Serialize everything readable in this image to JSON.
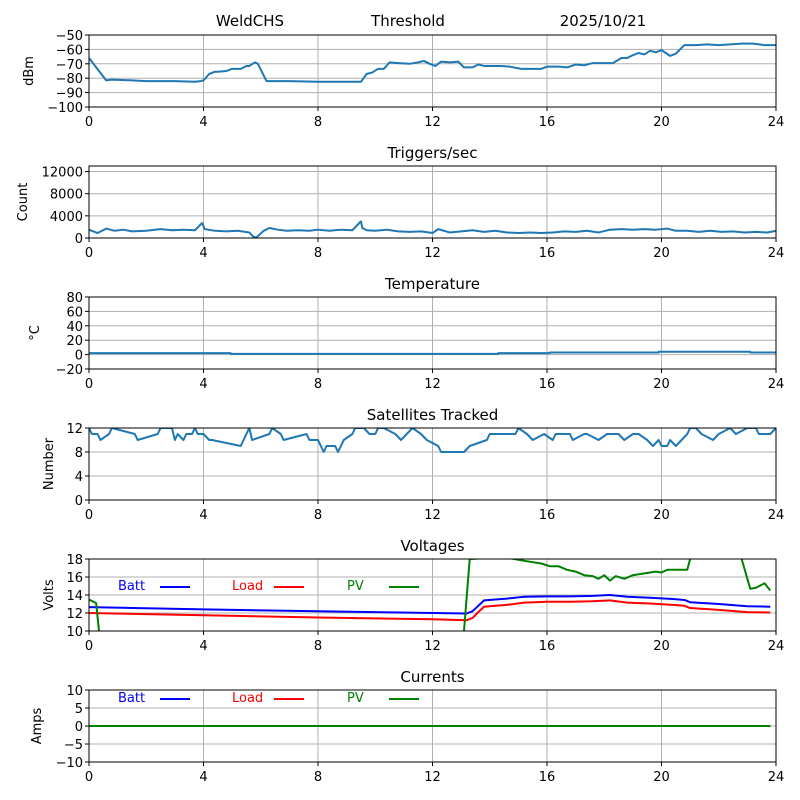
{
  "header": {
    "station": "WeldCHS",
    "mode": "Threshold",
    "date": "2025/10/21"
  },
  "chart_data": [
    {
      "id": "dbm",
      "type": "line",
      "title": "",
      "xlabel": "",
      "ylabel": "dBm",
      "xlim": [
        0,
        24
      ],
      "ylim": [
        -100,
        -50
      ],
      "xticks": [
        0,
        4,
        8,
        12,
        16,
        20,
        24
      ],
      "yticks": [
        -50,
        -60,
        -70,
        -80,
        -90,
        -100
      ],
      "ytick_labels": [
        "−50",
        "−60",
        "−70",
        "−80",
        "−90",
        "−100"
      ],
      "grid": true,
      "series": [
        {
          "name": "Threshold",
          "color": "#1f77b4",
          "x": [
            0,
            0.6,
            0.8,
            1.5,
            2,
            3,
            3.7,
            3.9,
            4.0,
            4.2,
            4.4,
            4.5,
            4.8,
            5.0,
            5.3,
            5.5,
            5.6,
            5.8,
            5.9,
            6.2,
            6.5,
            7,
            8,
            9,
            9.5,
            9.7,
            9.9,
            10.1,
            10.3,
            10.5,
            10.8,
            11.2,
            11.5,
            11.7,
            11.9,
            12.1,
            12.3,
            12.6,
            12.9,
            13.1,
            13.4,
            13.6,
            13.8,
            14.1,
            14.4,
            14.7,
            15.1,
            15.4,
            15.8,
            16.0,
            16.4,
            16.7,
            17.0,
            17.3,
            17.6,
            17.9,
            18.3,
            18.6,
            18.8,
            19.0,
            19.2,
            19.4,
            19.6,
            19.8,
            20.0,
            20.3,
            20.5,
            20.8,
            21.2,
            21.6,
            22.0,
            22.4,
            22.8,
            23.2,
            23.6,
            24
          ],
          "y": [
            -66,
            -81.5,
            -81,
            -81.5,
            -82,
            -82,
            -82.5,
            -82,
            -81.5,
            -77,
            -75.5,
            -75.5,
            -75,
            -73.5,
            -73.5,
            -71.5,
            -71.5,
            -69,
            -70,
            -82,
            -82,
            -82,
            -82.5,
            -82.5,
            -82.5,
            -77,
            -76,
            -73.5,
            -73.5,
            -69,
            -69.5,
            -70,
            -69,
            -68,
            -70,
            -71.5,
            -68.5,
            -69,
            -68.5,
            -72.5,
            -72.5,
            -70.5,
            -71.5,
            -71.5,
            -71.5,
            -72,
            -73.5,
            -73.5,
            -73.5,
            -72,
            -72,
            -72.5,
            -70.5,
            -71,
            -69.5,
            -69.5,
            -69.5,
            -66,
            -66,
            -64,
            -62.5,
            -63.5,
            -61,
            -62,
            -60.5,
            -64.5,
            -63,
            -57,
            -57,
            -56.5,
            -57,
            -56.5,
            -56,
            -56,
            -57,
            -57
          ]
        }
      ]
    },
    {
      "id": "triggers",
      "type": "line",
      "title": "Triggers/sec",
      "xlabel": "",
      "ylabel": "Count",
      "xlim": [
        0,
        24
      ],
      "ylim": [
        0,
        13000
      ],
      "xticks": [
        0,
        4,
        8,
        12,
        16,
        20,
        24
      ],
      "yticks": [
        0,
        4000,
        8000,
        12000
      ],
      "grid": true,
      "series": [
        {
          "name": "Triggers",
          "color": "#1f77b4",
          "x": [
            0,
            0.3,
            0.6,
            0.9,
            1.2,
            1.5,
            2.0,
            2.5,
            2.9,
            3.3,
            3.7,
            3.95,
            4.05,
            4.4,
            4.8,
            5.2,
            5.6,
            5.75,
            5.85,
            6.1,
            6.3,
            6.6,
            6.9,
            7.3,
            7.7,
            8.0,
            8.4,
            8.8,
            9.2,
            9.5,
            9.55,
            9.7,
            10.0,
            10.4,
            10.8,
            11.2,
            11.6,
            12.0,
            12.2,
            12.6,
            13.0,
            13.4,
            13.8,
            14.2,
            14.6,
            15.0,
            15.4,
            15.8,
            16.2,
            16.6,
            17.0,
            17.4,
            17.8,
            18.2,
            18.6,
            19.0,
            19.4,
            19.8,
            20.2,
            20.5,
            20.9,
            21.3,
            21.7,
            22.1,
            22.5,
            22.9,
            23.3,
            23.7,
            24
          ],
          "y": [
            1500,
            900,
            1700,
            1300,
            1500,
            1200,
            1300,
            1600,
            1400,
            1500,
            1400,
            2700,
            1600,
            1300,
            1200,
            1300,
            1000,
            200,
            100,
            1300,
            1800,
            1500,
            1300,
            1400,
            1300,
            1500,
            1300,
            1500,
            1400,
            3000,
            1800,
            1400,
            1300,
            1500,
            1200,
            1100,
            1200,
            900,
            1600,
            1000,
            1200,
            1400,
            1100,
            1300,
            1000,
            900,
            1000,
            900,
            1000,
            1200,
            1100,
            1300,
            1000,
            1500,
            1600,
            1500,
            1600,
            1500,
            1700,
            1300,
            1300,
            1100,
            1300,
            1100,
            1200,
            1000,
            1100,
            1000,
            1300
          ]
        }
      ]
    },
    {
      "id": "temperature",
      "type": "line",
      "title": "Temperature",
      "xlabel": "",
      "ylabel": "°C",
      "xlim": [
        0,
        24
      ],
      "ylim": [
        -20,
        80
      ],
      "xticks": [
        0,
        4,
        8,
        12,
        16,
        20,
        24
      ],
      "yticks": [
        -20,
        0,
        20,
        40,
        60,
        80
      ],
      "ytick_labels": [
        "−20",
        "0",
        "20",
        "40",
        "60",
        "80"
      ],
      "grid": true,
      "series": [
        {
          "name": "Temperature",
          "color": "#1f77b4",
          "x": [
            0,
            4.95,
            4.95,
            14.3,
            14.3,
            16.1,
            16.1,
            19.9,
            19.9,
            23.1,
            23.1,
            24
          ],
          "y": [
            2,
            2,
            1,
            1,
            2,
            2,
            3,
            3,
            4,
            4,
            3,
            3
          ]
        }
      ]
    },
    {
      "id": "satellites",
      "type": "line",
      "title": "Satellites Tracked",
      "xlabel": "",
      "ylabel": "Number",
      "xlim": [
        0,
        24
      ],
      "ylim": [
        0,
        12
      ],
      "xticks": [
        0,
        4,
        8,
        12,
        16,
        20,
        24
      ],
      "yticks": [
        0,
        4,
        8,
        12
      ],
      "grid": true,
      "series": [
        {
          "name": "Satellites",
          "color": "#1f77b4",
          "x": [
            0,
            0.1,
            0.3,
            0.4,
            0.7,
            0.8,
            1.6,
            1.7,
            2.4,
            2.5,
            2.9,
            3.0,
            3.1,
            3.3,
            3.4,
            3.6,
            3.7,
            3.8,
            4.0,
            4.2,
            4.3,
            5.3,
            5.4,
            5.5,
            5.6,
            5.7,
            6.3,
            6.4,
            6.7,
            6.8,
            7.6,
            7.7,
            8.0,
            8.2,
            8.3,
            8.6,
            8.7,
            8.9,
            9.2,
            9.3,
            9.5,
            9.6,
            9.8,
            10.0,
            10.1,
            10.3,
            10.7,
            10.9,
            11.1,
            11.3,
            11.6,
            11.8,
            12.2,
            12.3,
            12.9,
            13.1,
            13.3,
            13.9,
            14.0,
            14.4,
            14.9,
            15.0,
            15.3,
            15.5,
            15.9,
            16.2,
            16.3,
            16.8,
            16.9,
            17.3,
            17.4,
            17.8,
            18.1,
            18.5,
            18.7,
            19.0,
            19.2,
            19.5,
            19.7,
            19.9,
            20.0,
            20.2,
            20.3,
            20.5,
            20.7,
            20.9,
            21.0,
            21.2,
            21.4,
            21.8,
            22.0,
            22.4,
            22.6,
            23.0,
            23.3,
            23.4,
            23.6,
            23.8,
            24
          ],
          "y": [
            12,
            11,
            11,
            10,
            11,
            12,
            11,
            10,
            11,
            12,
            12,
            10,
            11,
            10,
            11,
            11,
            12,
            11,
            11,
            10,
            10,
            9,
            10,
            11,
            12,
            10,
            11,
            12,
            11,
            10,
            11,
            10,
            10,
            8,
            9,
            9,
            8,
            10,
            11,
            12,
            12,
            12,
            11,
            11,
            12,
            12,
            11,
            10,
            11,
            12,
            11,
            10,
            9,
            8,
            8,
            8,
            9,
            10,
            11,
            11,
            11,
            12,
            11,
            10,
            11,
            10,
            11,
            11,
            10,
            11,
            11,
            10,
            11,
            11,
            10,
            11,
            11,
            10,
            9,
            10,
            9,
            9,
            10,
            9,
            10,
            11,
            12,
            12,
            11,
            10,
            11,
            12,
            11,
            12,
            12,
            11,
            11,
            11,
            12
          ]
        }
      ]
    },
    {
      "id": "voltages",
      "type": "line",
      "title": "Voltages",
      "xlabel": "",
      "ylabel": "Volts",
      "xlim": [
        0,
        24
      ],
      "ylim": [
        10,
        18
      ],
      "xticks": [
        0,
        4,
        8,
        12,
        16,
        20,
        24
      ],
      "yticks": [
        10,
        12,
        14,
        16,
        18
      ],
      "grid": true,
      "legend": [
        {
          "label": "Batt",
          "color": "#0000ff"
        },
        {
          "label": "Load",
          "color": "#ff0000"
        },
        {
          "label": "PV",
          "color": "#008000"
        }
      ],
      "series": [
        {
          "name": "Batt",
          "color": "#0000ff",
          "x": [
            0,
            4,
            8,
            12,
            13.2,
            13.4,
            13.6,
            13.8,
            14.2,
            14.6,
            15.2,
            16,
            16.8,
            17.6,
            18.2,
            18.8,
            19.6,
            20.4,
            20.8,
            21.0,
            22,
            23,
            23.8
          ],
          "y": [
            12.65,
            12.4,
            12.2,
            12.0,
            11.95,
            12.2,
            12.8,
            13.4,
            13.5,
            13.6,
            13.8,
            13.85,
            13.85,
            13.9,
            14.0,
            13.8,
            13.7,
            13.55,
            13.45,
            13.2,
            13.0,
            12.75,
            12.7
          ]
        },
        {
          "name": "Load",
          "color": "#ff0000",
          "x": [
            0,
            4,
            8,
            12,
            13.2,
            13.4,
            13.6,
            13.8,
            14.2,
            14.6,
            15.2,
            16,
            16.8,
            17.6,
            18.2,
            18.8,
            19.6,
            20.4,
            20.8,
            21.0,
            22,
            23,
            23.8
          ],
          "y": [
            12.0,
            11.75,
            11.5,
            11.3,
            11.2,
            11.45,
            12.1,
            12.7,
            12.8,
            12.9,
            13.15,
            13.25,
            13.25,
            13.3,
            13.4,
            13.15,
            13.05,
            12.9,
            12.8,
            12.55,
            12.35,
            12.1,
            12.05
          ]
        },
        {
          "name": "PV",
          "color": "#008000",
          "x": [
            0,
            0.25,
            0.35,
            0.5,
            13.05,
            13.3,
            14.5,
            15.2,
            15.8,
            16.1,
            16.4,
            16.7,
            17.0,
            17.3,
            17.6,
            17.8,
            18.0,
            18.2,
            18.4,
            18.7,
            19.0,
            19.4,
            19.8,
            20.0,
            20.2,
            20.6,
            20.9,
            21.0,
            21.5,
            22.7,
            22.8,
            23.1,
            23.3,
            23.6,
            23.8
          ],
          "y": [
            13.5,
            13.1,
            10.0,
            8.0,
            8.0,
            18.0,
            18.2,
            17.8,
            17.5,
            17.2,
            17.2,
            16.8,
            16.6,
            16.2,
            16.1,
            15.8,
            16.2,
            15.6,
            16.1,
            15.8,
            16.2,
            16.4,
            16.6,
            16.5,
            16.8,
            16.8,
            16.8,
            18.0,
            19.0,
            19.0,
            18.0,
            14.7,
            14.8,
            15.3,
            14.5
          ]
        }
      ]
    },
    {
      "id": "currents",
      "type": "line",
      "title": "Currents",
      "xlabel": "",
      "ylabel": "Amps",
      "xlim": [
        0,
        24
      ],
      "ylim": [
        -10,
        10
      ],
      "xticks": [
        0,
        4,
        8,
        12,
        16,
        20,
        24
      ],
      "yticks": [
        -10,
        -5,
        0,
        5,
        10
      ],
      "ytick_labels": [
        "−10",
        "−5",
        "0",
        "5",
        "10"
      ],
      "grid": true,
      "legend": [
        {
          "label": "Batt",
          "color": "#0000ff"
        },
        {
          "label": "Load",
          "color": "#ff0000"
        },
        {
          "label": "PV",
          "color": "#008000"
        }
      ],
      "series": [
        {
          "name": "Batt",
          "color": "#0000ff",
          "x": [
            0,
            23.8
          ],
          "y": [
            0,
            0
          ]
        },
        {
          "name": "Load",
          "color": "#ff0000",
          "x": [
            0,
            23.8
          ],
          "y": [
            0,
            0
          ]
        },
        {
          "name": "PV",
          "color": "#008000",
          "x": [
            0,
            23.8
          ],
          "y": [
            0,
            0
          ]
        }
      ]
    }
  ]
}
